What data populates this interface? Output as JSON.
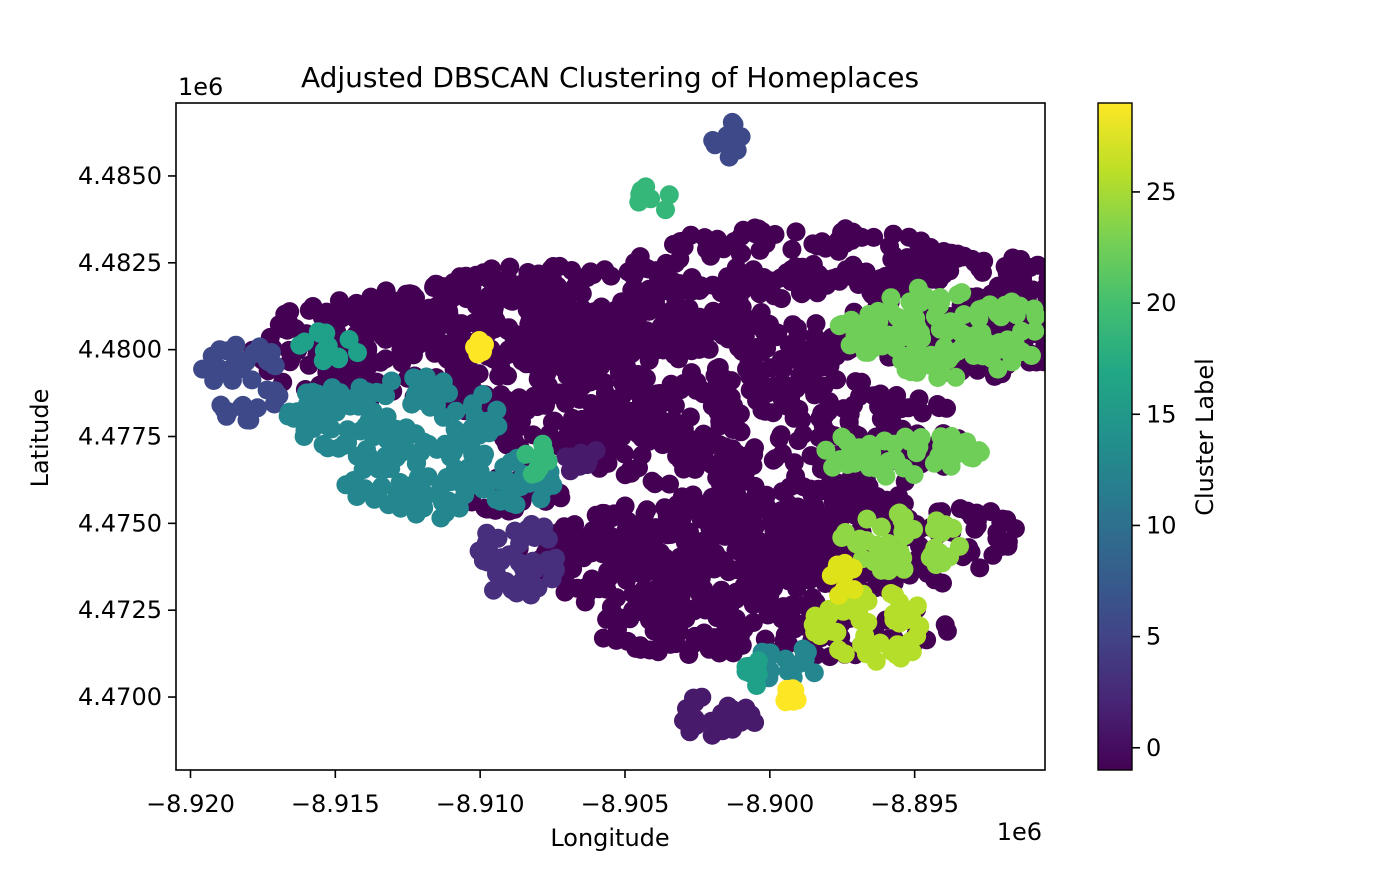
{
  "chart_data": {
    "type": "scatter",
    "title": "Adjusted DBSCAN Clustering of Homeplaces",
    "xlabel": "Longitude",
    "ylabel": "Latitude",
    "x_offset_label": "1e6",
    "y_offset_label": "1e6",
    "xlim": [
      -8.9205,
      -8.8905
    ],
    "ylim": [
      4.4679,
      4.4871
    ],
    "x_ticks": [
      -8.92,
      -8.915,
      -8.91,
      -8.905,
      -8.9,
      -8.895
    ],
    "x_tick_labels": [
      "−8.920",
      "−8.915",
      "−8.910",
      "−8.905",
      "−8.900",
      "−8.895"
    ],
    "y_ticks": [
      4.47,
      4.4725,
      4.475,
      4.4775,
      4.48,
      4.4825,
      4.485
    ],
    "y_tick_labels": [
      "4.4700",
      "4.4725",
      "4.4750",
      "4.4775",
      "4.4800",
      "4.4825",
      "4.4850"
    ],
    "grid": false,
    "colormap": "viridis",
    "colorbar": {
      "label": "Cluster Label",
      "range": [
        -1,
        29
      ],
      "ticks": [
        0,
        5,
        10,
        15,
        20,
        25
      ],
      "tick_labels": [
        "0",
        "5",
        "10",
        "15",
        "20",
        "25"
      ]
    },
    "clusters": [
      {
        "label": 0,
        "color": "#440154",
        "blobs": [
          [
            -8.9115,
            4.48,
            1.3,
            0.13
          ],
          [
            -8.907,
            4.481,
            1.4,
            0.11
          ],
          [
            -8.903,
            4.48,
            1.1,
            0.1
          ],
          [
            -8.899,
            4.4825,
            1.1,
            0.08
          ],
          [
            -8.893,
            4.481,
            0.8,
            0.14
          ],
          [
            -8.9,
            4.4775,
            1.3,
            0.14
          ],
          [
            -8.899,
            4.4745,
            1.5,
            0.12
          ],
          [
            -8.903,
            4.474,
            1.1,
            0.12
          ],
          [
            -8.9,
            4.472,
            1.2,
            0.07
          ],
          [
            -8.907,
            4.478,
            0.7,
            0.07
          ],
          [
            -8.909,
            4.476,
            0.4,
            0.05
          ]
        ]
      },
      {
        "label": 1,
        "color": "#481a6c",
        "blobs": [
          [
            -8.9019,
            4.4695,
            0.28,
            0.05
          ],
          [
            -8.9065,
            4.4769,
            0.14,
            0.04
          ]
        ]
      },
      {
        "label": 2,
        "color": "#472f7d",
        "blobs": [
          [
            -8.9087,
            4.474,
            0.27,
            0.09
          ]
        ]
      },
      {
        "label": 5,
        "color": "#3e4989",
        "blobs": [
          [
            -8.9182,
            4.4791,
            0.28,
            0.09
          ],
          [
            -8.9015,
            4.486,
            0.1,
            0.06
          ]
        ]
      },
      {
        "label": 12,
        "color": "#24868e",
        "blobs": [
          [
            -8.913,
            4.478,
            0.7,
            0.1
          ],
          [
            -8.911,
            4.4762,
            0.7,
            0.08
          ],
          [
            -8.8995,
            4.471,
            0.24,
            0.05
          ]
        ]
      },
      {
        "label": 15,
        "color": "#1fa088",
        "blobs": [
          [
            -8.9152,
            4.4801,
            0.2,
            0.04
          ],
          [
            -8.9005,
            4.4707,
            0.07,
            0.03
          ]
        ]
      },
      {
        "label": 19,
        "color": "#35b779",
        "blobs": [
          [
            -8.904,
            4.4843,
            0.12,
            0.04
          ],
          [
            -8.908,
            4.4768,
            0.1,
            0.04
          ]
        ]
      },
      {
        "label": 22,
        "color": "#6ece58",
        "blobs": [
          [
            -8.894,
            4.4805,
            0.7,
            0.1
          ],
          [
            -8.8955,
            4.477,
            0.6,
            0.05
          ]
        ]
      },
      {
        "label": 24,
        "color": "#8fd744",
        "blobs": [
          [
            -8.8955,
            4.4745,
            0.4,
            0.07
          ]
        ]
      },
      {
        "label": 26,
        "color": "#b5de2b",
        "blobs": [
          [
            -8.8965,
            4.472,
            0.4,
            0.08
          ]
        ]
      },
      {
        "label": 28,
        "color": "#dde318",
        "blobs": [
          [
            -8.8975,
            4.4734,
            0.1,
            0.04
          ]
        ]
      },
      {
        "label": 29,
        "color": "#fde725",
        "blobs": [
          [
            -8.91,
            4.4801,
            0.04,
            0.02
          ],
          [
            -8.8993,
            4.47,
            0.05,
            0.02
          ]
        ]
      }
    ]
  }
}
